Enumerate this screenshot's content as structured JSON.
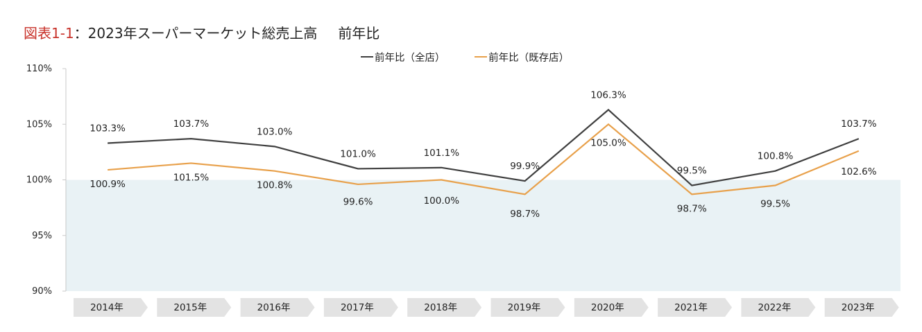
{
  "title": {
    "figure_label": "図表1-1",
    "separator": "：",
    "main": "2023年スーパーマーケット総売上高",
    "sub": "前年比"
  },
  "colors": {
    "all_stores": "#3f3f3f",
    "existing_stores": "#e8a04a",
    "below_100_band": "#e9f2f5",
    "category_tag": "#e3e3e3",
    "figure_label": "#c8322a"
  },
  "chart_data": {
    "type": "line",
    "categories": [
      "2014年",
      "2015年",
      "2016年",
      "2017年",
      "2018年",
      "2019年",
      "2020年",
      "2021年",
      "2022年",
      "2023年"
    ],
    "series": [
      {
        "name": "前年比（全店）",
        "values": [
          103.3,
          103.7,
          103.0,
          101.0,
          101.1,
          99.9,
          106.3,
          99.5,
          100.8,
          103.7
        ],
        "labels": [
          "103.3%",
          "103.7%",
          "103.0%",
          "101.0%",
          "101.1%",
          "99.9%",
          "106.3%",
          "99.5%",
          "100.8%",
          "103.7%"
        ]
      },
      {
        "name": "前年比（既存店）",
        "values": [
          100.9,
          101.5,
          100.8,
          99.6,
          100.0,
          98.7,
          105.0,
          98.7,
          99.5,
          102.6
        ],
        "labels": [
          "100.9%",
          "101.5%",
          "100.8%",
          "99.6%",
          "100.0%",
          "98.7%",
          "105.0%",
          "98.7%",
          "99.5%",
          "102.6%"
        ]
      }
    ],
    "ylim": [
      90,
      110
    ],
    "yticks": [
      110,
      105,
      100,
      95,
      90
    ],
    "ytick_labels": [
      "110%",
      "105%",
      "100%",
      "95%",
      "90%"
    ],
    "shaded_band_below": 100,
    "legend_position": "top-center"
  }
}
